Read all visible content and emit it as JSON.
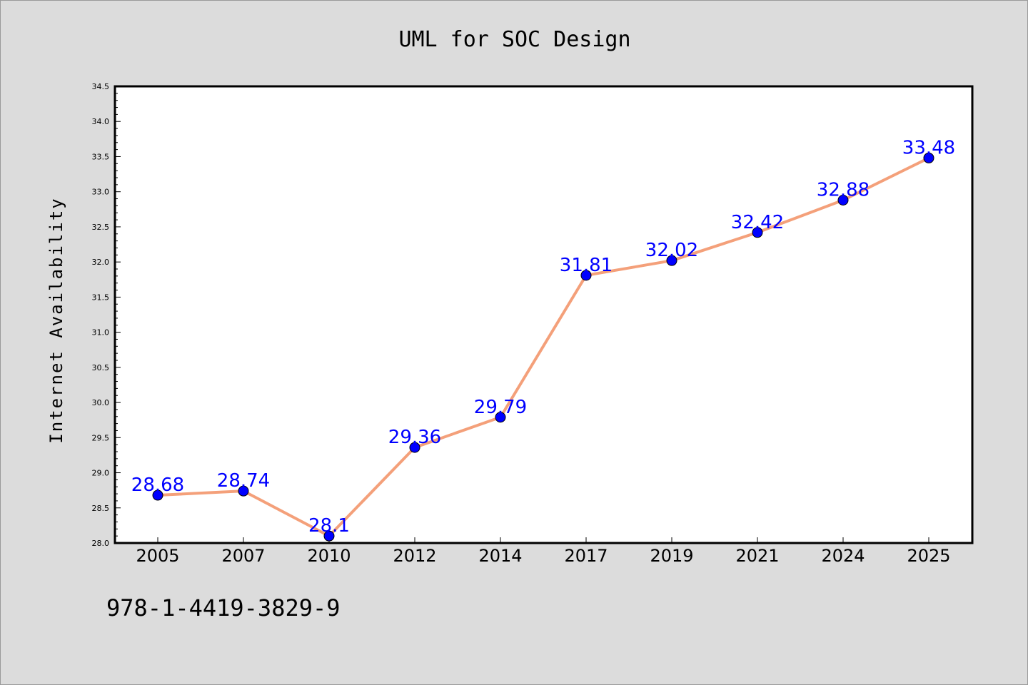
{
  "chart_data": {
    "type": "line",
    "title": "UML for SOC Design",
    "ylabel": "Internet Availability",
    "xlabel": "",
    "categories": [
      "2005",
      "2007",
      "2010",
      "2012",
      "2014",
      "2017",
      "2019",
      "2021",
      "2024",
      "2025"
    ],
    "series": [
      {
        "values": [
          28.68,
          28.74,
          28.1,
          29.36,
          29.79,
          31.81,
          32.02,
          32.42,
          32.88,
          33.48
        ],
        "labels": [
          "28.68",
          "28.74",
          "28.1",
          "29.36",
          "29.79",
          "31.81",
          "32.02",
          "32.42",
          "32.88",
          "33.48"
        ],
        "line_color": "#f4a07a",
        "marker_color": "#0000ff"
      }
    ],
    "ylim": [
      28.0,
      34.5
    ],
    "yticks": [
      "28.0",
      "28.5",
      "29.0",
      "29.5",
      "30.0",
      "30.5",
      "31.0",
      "31.5",
      "32.0",
      "32.5",
      "33.0",
      "33.5",
      "34.0",
      "34.5"
    ],
    "grid": false,
    "legend": "none"
  },
  "footer": {
    "isbn": "978-1-4419-3829-9"
  },
  "colors": {
    "background": "#dcdcdc",
    "plot_background": "#ffffff",
    "line": "#f4a07a",
    "marker": "#0000ff",
    "data_label": "#0000ff"
  }
}
